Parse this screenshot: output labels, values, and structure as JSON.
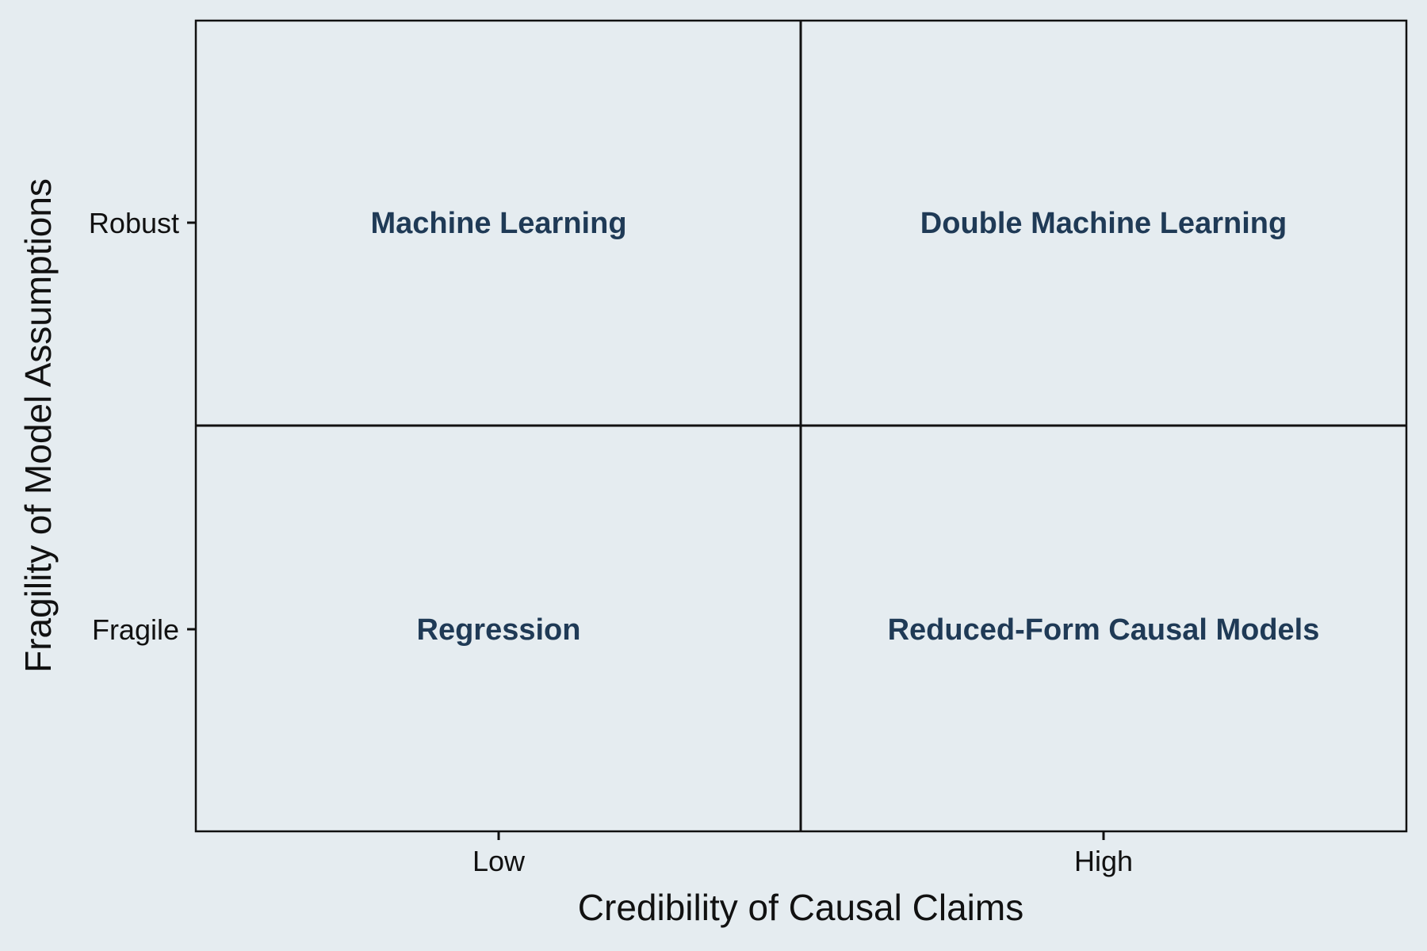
{
  "diagram": {
    "x_axis": {
      "title": "Credibility of Causal Claims",
      "ticks": [
        "Low",
        "High"
      ]
    },
    "y_axis": {
      "title": "Fragility of Model Assumptions",
      "ticks": [
        "Fragile",
        "Robust"
      ]
    },
    "quadrants": {
      "top_left": "Machine Learning",
      "top_right": "Double Machine Learning",
      "bottom_left": "Regression",
      "bottom_right": "Reduced-Form Causal Models"
    },
    "colors": {
      "background": "#e5ecf0",
      "frame": "#111111",
      "label": "#1f3a56",
      "axis_text": "#111111"
    }
  }
}
